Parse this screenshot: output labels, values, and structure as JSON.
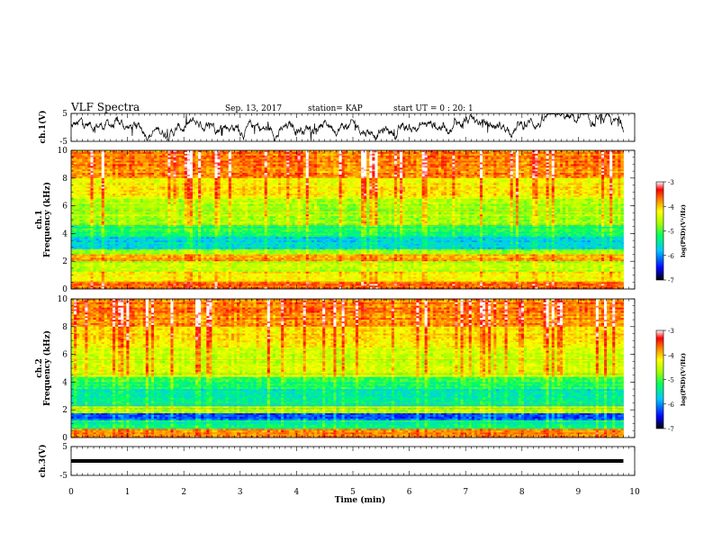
{
  "header": {
    "title": "VLF Spectra",
    "date": "Sep. 13, 2017",
    "station": "station= KAP",
    "start": "start  UT =   0 : 20: 1"
  },
  "chart_data": [
    {
      "type": "line",
      "name": "ch1-waveform",
      "ylabel": "ch.1(V)",
      "ylim": [
        -5,
        5
      ],
      "xlim": [
        0,
        10
      ],
      "yticks": [
        "5",
        "-5"
      ],
      "data_extent_min": 9.8,
      "trace": "noisy waveform fluctuating roughly between -4.5 and 4.5 V"
    },
    {
      "type": "heatmap",
      "name": "ch1-spectrogram",
      "ylabel": "ch.1\nFrequency (kHz)",
      "ylabel_line1": "ch.1",
      "ylabel_line2": "Frequency (kHz)",
      "ylim": [
        0,
        10
      ],
      "yticks": [
        "0",
        "2",
        "4",
        "6",
        "8",
        "10"
      ],
      "xlim": [
        0,
        10
      ],
      "colorbar": {
        "label": "log(PSD)(V²/Hz)",
        "range": [
          -7,
          -3
        ],
        "ticks": [
          "-3",
          "-4",
          "-5",
          "-6",
          "-7"
        ]
      },
      "bands_kHz": [
        {
          "from": 0,
          "to": 0.5,
          "level": -3.6
        },
        {
          "from": 0.5,
          "to": 1.2,
          "level": -4.2
        },
        {
          "from": 1.2,
          "to": 2.0,
          "level": -4.6
        },
        {
          "from": 2.0,
          "to": 2.5,
          "level": -3.8
        },
        {
          "from": 2.5,
          "to": 2.9,
          "level": -4.8
        },
        {
          "from": 2.9,
          "to": 3.8,
          "level": -5.6
        },
        {
          "from": 3.8,
          "to": 4.6,
          "level": -5.2
        },
        {
          "from": 4.6,
          "to": 6.5,
          "level": -4.6
        },
        {
          "from": 6.5,
          "to": 8.0,
          "level": -4.2
        },
        {
          "from": 8.0,
          "to": 10.0,
          "level": -3.7
        }
      ]
    },
    {
      "type": "heatmap",
      "name": "ch2-spectrogram",
      "ylabel": "ch.2\nFrequency (kHz)",
      "ylabel_line1": "ch.2",
      "ylabel_line2": "Frequency (kHz)",
      "ylim": [
        0,
        10
      ],
      "yticks": [
        "0",
        "2",
        "4",
        "6",
        "8",
        "10"
      ],
      "xlim": [
        0,
        10
      ],
      "colorbar": {
        "label": "log(PSD)(V²/Hz)",
        "range": [
          -7,
          -3
        ],
        "ticks": [
          "-3",
          "-4",
          "-5",
          "-6",
          "-7"
        ]
      },
      "bands_kHz": [
        {
          "from": 0,
          "to": 0.6,
          "level": -3.8
        },
        {
          "from": 0.6,
          "to": 1.2,
          "level": -5.4
        },
        {
          "from": 1.2,
          "to": 1.8,
          "level": -6.2
        },
        {
          "from": 1.8,
          "to": 2.2,
          "level": -4.6
        },
        {
          "from": 2.2,
          "to": 3.5,
          "level": -5.5
        },
        {
          "from": 3.5,
          "to": 4.4,
          "level": -5.2
        },
        {
          "from": 4.4,
          "to": 6.5,
          "level": -4.5
        },
        {
          "from": 6.5,
          "to": 8.0,
          "level": -4.1
        },
        {
          "from": 8.0,
          "to": 10.0,
          "level": -3.7
        }
      ]
    },
    {
      "type": "line",
      "name": "ch3-waveform",
      "ylabel": "ch.3(V)",
      "ylim": [
        -5,
        5
      ],
      "xlim": [
        0,
        10
      ],
      "yticks": [
        "5",
        "-5"
      ],
      "level": 0,
      "data_extent_min": 9.8
    }
  ],
  "xaxis": {
    "label": "Time (min)",
    "ticks": [
      "0",
      "1",
      "2",
      "3",
      "4",
      "5",
      "6",
      "7",
      "8",
      "9",
      "10"
    ]
  },
  "colorscale": [
    "#000080",
    "#0000ff",
    "#00c0ff",
    "#00ff80",
    "#a0ff00",
    "#ffff00",
    "#ff8000",
    "#ff0000",
    "#ffffff"
  ]
}
